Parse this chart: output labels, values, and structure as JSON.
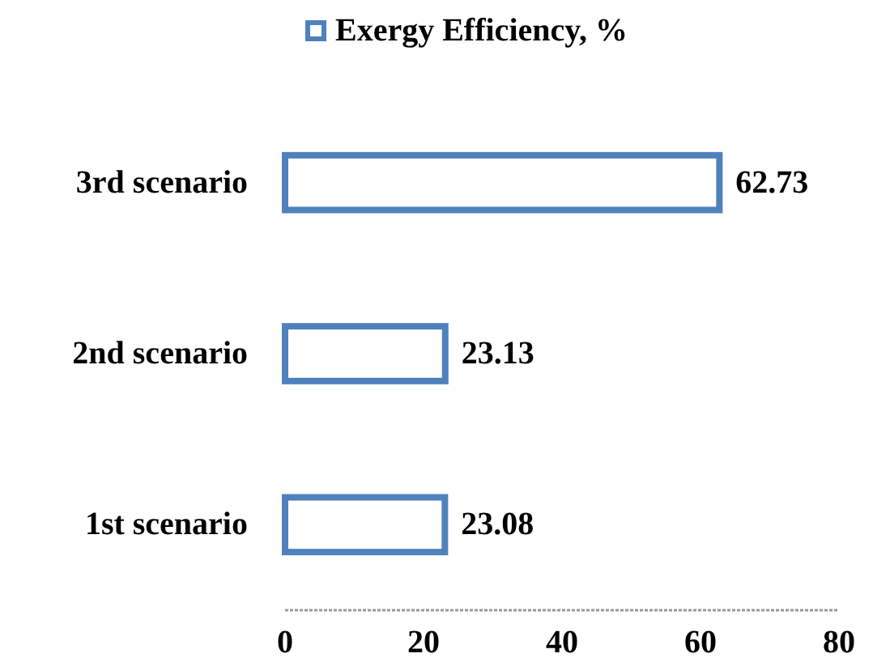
{
  "chart_data": {
    "type": "bar",
    "orientation": "horizontal",
    "categories": [
      "3rd scenario",
      "2nd scenario",
      "1st scenario"
    ],
    "series": [
      {
        "name": "Exergy Efficiency, %",
        "color": "#4f81bd",
        "values": [
          62.73,
          23.13,
          23.08
        ]
      }
    ],
    "xlim": [
      0,
      80
    ],
    "xticks": [
      0,
      20,
      40,
      60,
      80
    ],
    "data_labels": true,
    "legend": "top",
    "grid": false
  }
}
